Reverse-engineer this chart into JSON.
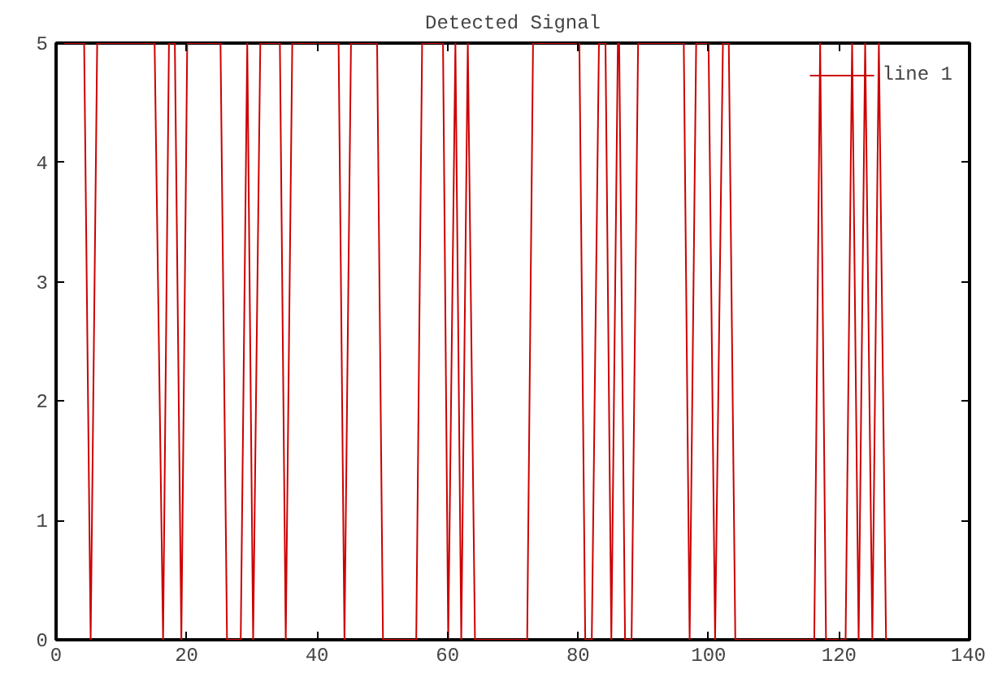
{
  "chart_data": {
    "type": "line",
    "title": "Detected Signal",
    "x": [
      0,
      4.3,
      5.3,
      6.3,
      15.1,
      16.4,
      17.3,
      18.2,
      19.2,
      20.1,
      25.2,
      26.2,
      28.3,
      29.3,
      30.2,
      31.3,
      34.3,
      35.2,
      36.2,
      43.3,
      44.2,
      45.2,
      49.2,
      50.1,
      55.2,
      56.1,
      59.3,
      60.1,
      61.2,
      62.1,
      63.1,
      64.2,
      72.2,
      73.1,
      80.2,
      81.1,
      82.1,
      83.2,
      84.2,
      85.1,
      86.1,
      86.3,
      87.2,
      88.2,
      89.2,
      96.2,
      97.1,
      98.1,
      100.0,
      101.0,
      102.2,
      103.1,
      104.1,
      116.2,
      117.1,
      118.0,
      121.0,
      122.0,
      123.0,
      124.0,
      125.1,
      126.1,
      127.2
    ],
    "series": [
      {
        "name": "line 1",
        "color": "#cc0000",
        "values": [
          5,
          5,
          0,
          5,
          5,
          0,
          5,
          5,
          0,
          5,
          5,
          0,
          0,
          5,
          0,
          5,
          5,
          0,
          5,
          5,
          0,
          5,
          5,
          0,
          0,
          5,
          5,
          0,
          5,
          0,
          5,
          0,
          0,
          5,
          5,
          0,
          0,
          5,
          5,
          0,
          5,
          5,
          0,
          0,
          5,
          5,
          0,
          5,
          5,
          0,
          5,
          5,
          0,
          0,
          5,
          0,
          0,
          5,
          0,
          5,
          0,
          5,
          0
        ]
      }
    ],
    "xlim": [
      0,
      140
    ],
    "ylim": [
      0,
      5
    ],
    "xticks": [
      0,
      20,
      40,
      60,
      80,
      100,
      120,
      140
    ],
    "yticks": [
      0,
      1,
      2,
      3,
      4,
      5
    ],
    "grid": false,
    "legend": "top right",
    "marker": "none",
    "line_style": "solid"
  }
}
